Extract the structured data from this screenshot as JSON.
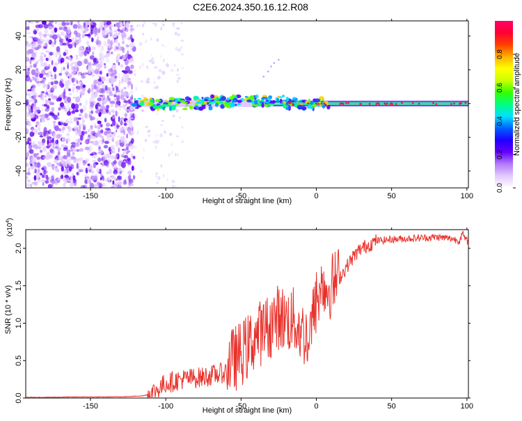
{
  "title": "C2E6.2024.350.16.12.R08",
  "chart_data": [
    {
      "type": "heatmap",
      "xlabel": "Height of straight line (km)",
      "ylabel": "Frequency (Hz)",
      "xlim": [
        -193,
        101
      ],
      "ylim": [
        -50,
        49
      ],
      "xticks": [
        -150,
        -100,
        -50,
        0,
        50,
        100
      ],
      "yticks": [
        -40,
        -20,
        0,
        20,
        40
      ],
      "noise_region_x": [
        -193,
        -121
      ],
      "signal_start_x": -121,
      "signal_center_frequency": 0,
      "colorbar": {
        "label": "Normalized spectral amplitude",
        "range": [
          0,
          1
        ],
        "ticks": [
          0.0,
          0.2,
          0.4,
          0.6,
          0.8
        ],
        "colors": [
          "#ffffff",
          "#e3c9ff",
          "#b27cf7",
          "#6600ff",
          "#1f00ff",
          "#0060ff",
          "#00e0ff",
          "#00ff80",
          "#33ff00",
          "#ccff00",
          "#ffff00",
          "#ffb000",
          "#ff4000",
          "#ff0033",
          "#ff0066"
        ]
      }
    },
    {
      "type": "line",
      "xlabel": "Height of straight line (km)",
      "ylabel": "SNR (10 * v/v)",
      "scale_label": "(x10",
      "scale_exponent": "4",
      "xlim": [
        -193,
        101
      ],
      "ylim": [
        0,
        2.25
      ],
      "xticks": [
        -150,
        -100,
        -50,
        0,
        50,
        100
      ],
      "yticks": [
        "0.0",
        "0.5",
        "1.0",
        "1.5",
        "2.0"
      ],
      "series": [
        {
          "name": "SNR",
          "color": "#e8302a",
          "x": [
            -193,
            -180,
            -160,
            -140,
            -125,
            -115,
            -110,
            -105,
            -100,
            -95,
            -90,
            -85,
            -80,
            -75,
            -70,
            -65,
            -60,
            -55,
            -50,
            -45,
            -40,
            -35,
            -30,
            -25,
            -20,
            -15,
            -10,
            -5,
            0,
            5,
            10,
            15,
            20,
            25,
            30,
            35,
            40,
            50,
            60,
            70,
            80,
            90,
            95,
            97,
            99,
            101
          ],
          "y": [
            0.01,
            0.01,
            0.015,
            0.015,
            0.02,
            0.03,
            0.06,
            0.12,
            0.2,
            0.22,
            0.25,
            0.26,
            0.27,
            0.28,
            0.3,
            0.32,
            0.35,
            0.42,
            0.5,
            0.6,
            0.75,
            0.8,
            0.9,
            1.0,
            0.95,
            0.95,
            0.8,
            0.7,
            1.2,
            1.45,
            1.5,
            1.6,
            1.75,
            1.9,
            2.0,
            2.05,
            2.1,
            2.12,
            2.13,
            2.14,
            2.15,
            2.13,
            2.1,
            2.2,
            2.12,
            2.08
          ]
        }
      ]
    }
  ]
}
